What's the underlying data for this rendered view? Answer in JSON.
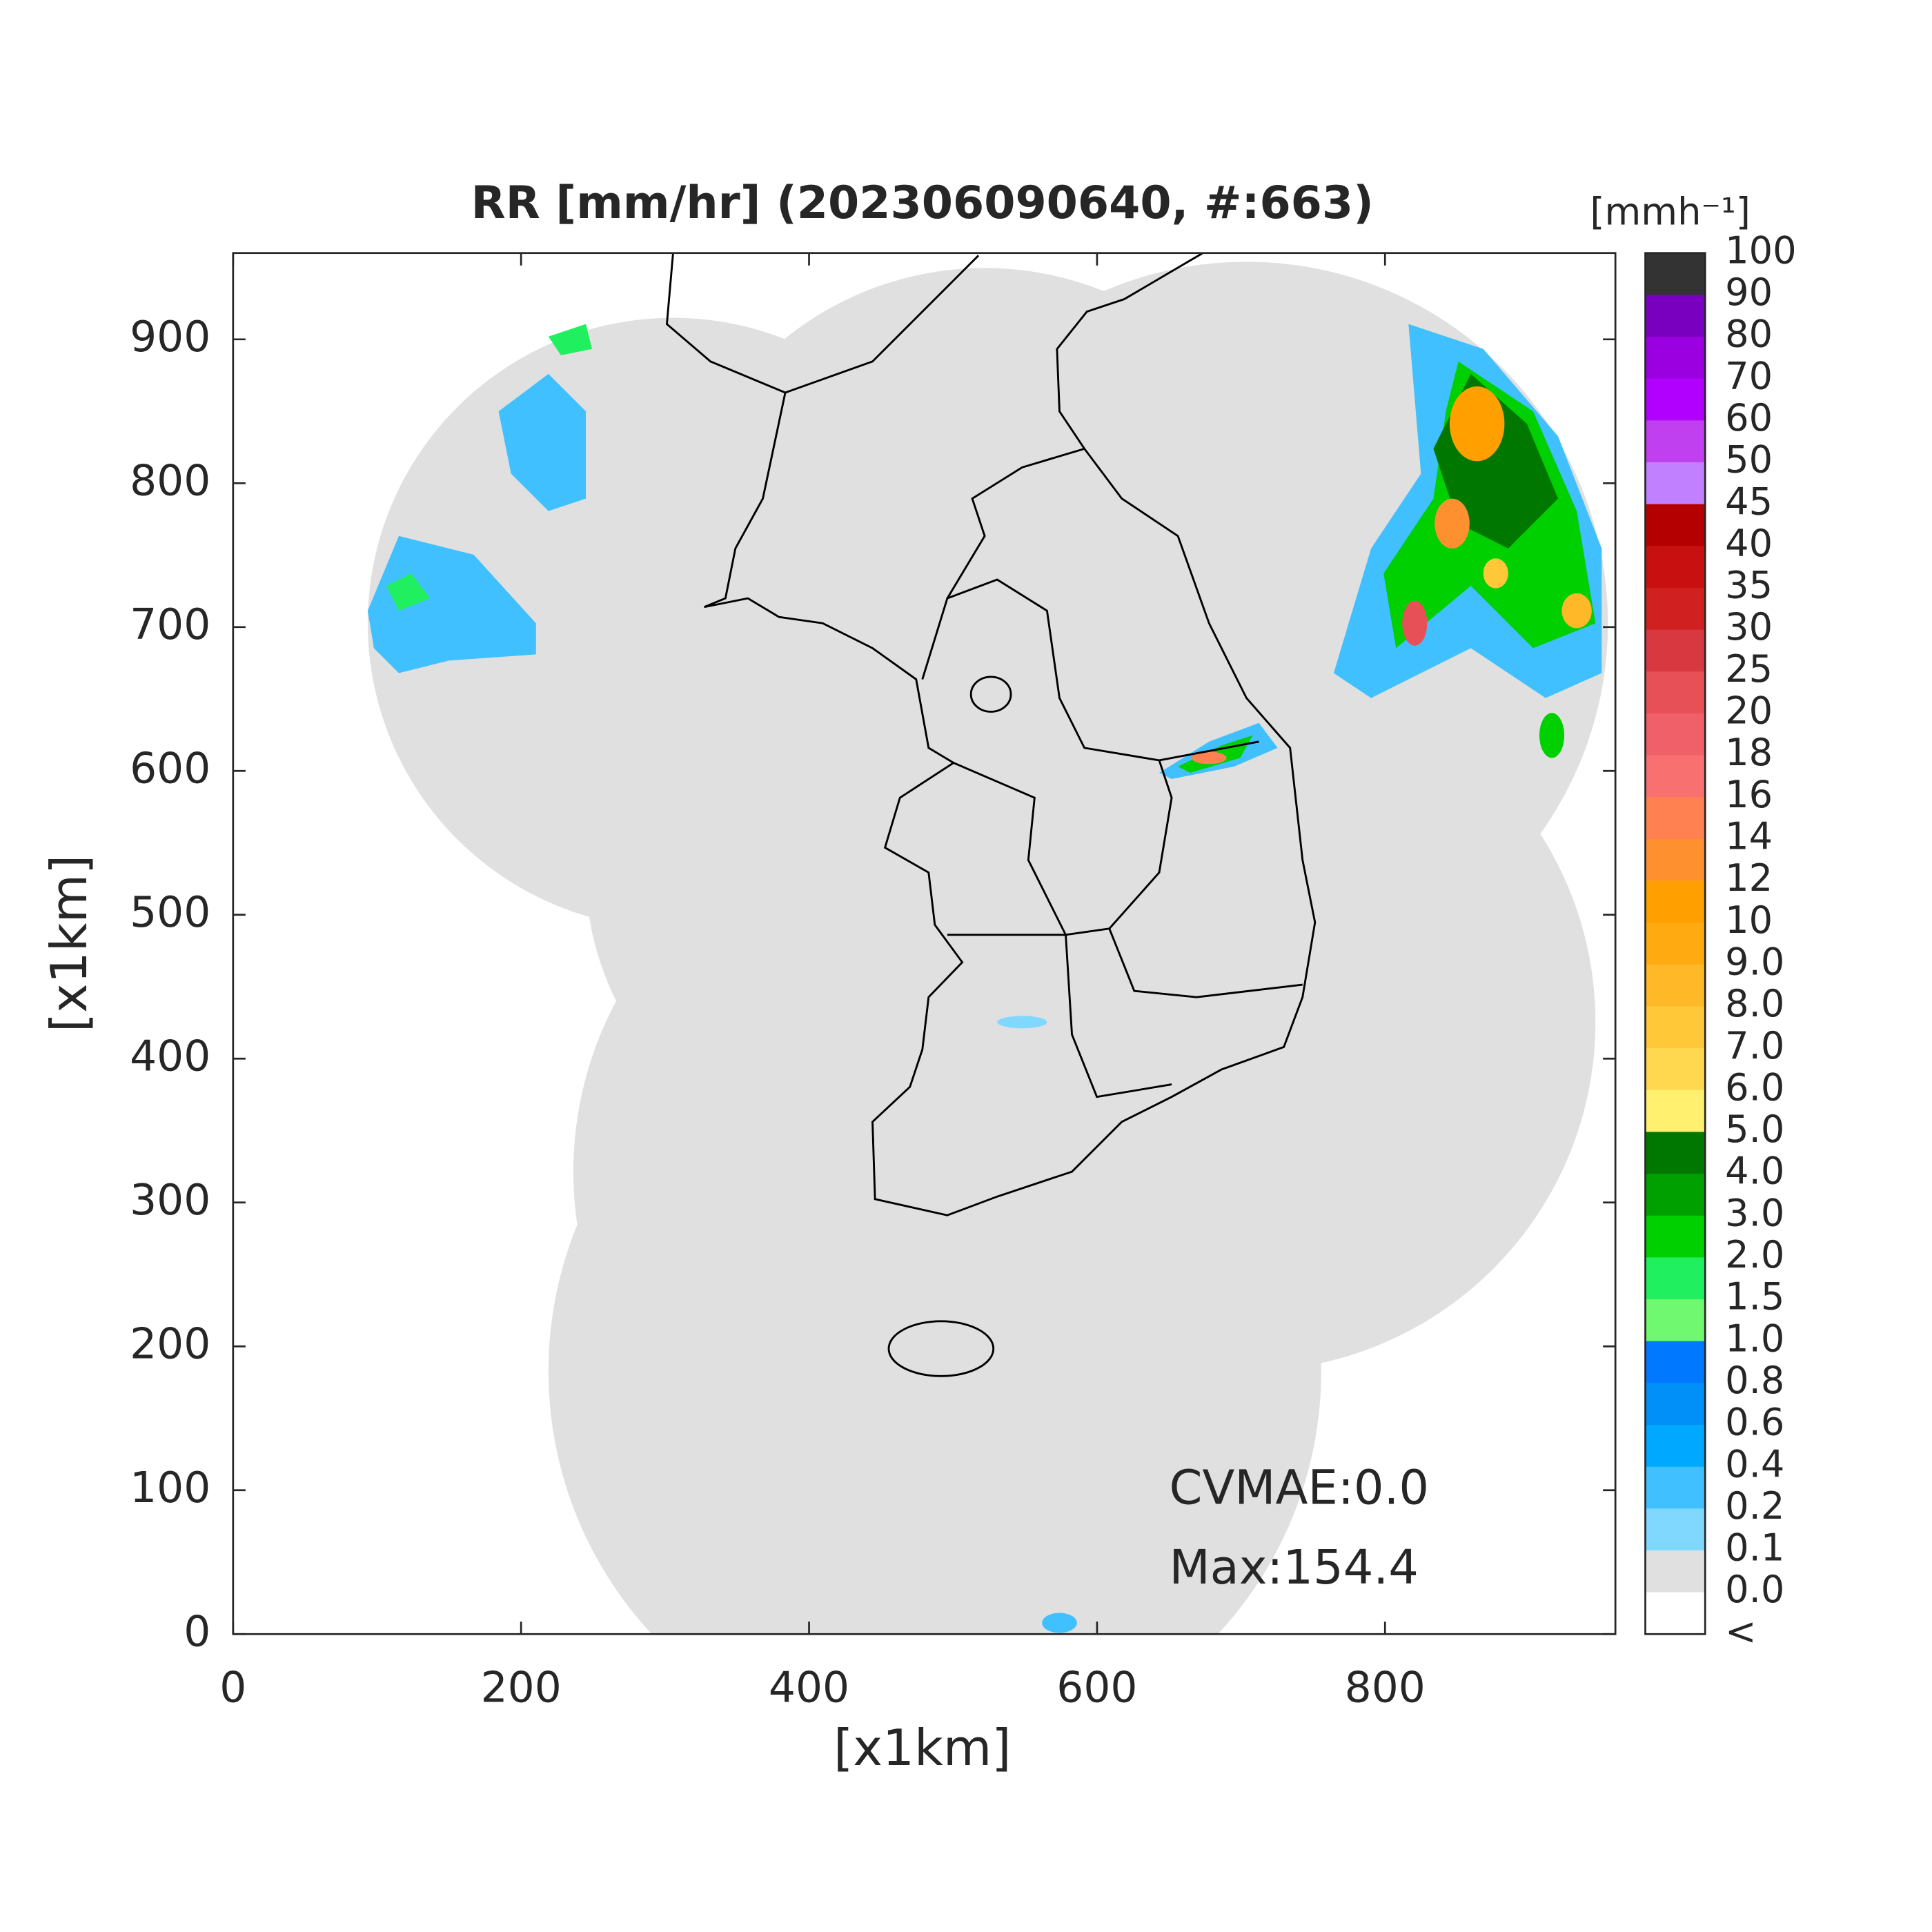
{
  "title": "RR [mm/hr] (202306090640, #:663)",
  "axes": {
    "xlabel": "[x1km]",
    "ylabel": "[x1km]",
    "xlim": [
      0,
      960
    ],
    "ylim": [
      0,
      960
    ],
    "xticks": [
      0,
      200,
      400,
      600,
      800
    ],
    "yticks": [
      0,
      100,
      200,
      300,
      400,
      500,
      600,
      700,
      800,
      900
    ]
  },
  "annotations": [
    "CVMAE:0.0",
    "Max:154.4"
  ],
  "colorbar": {
    "unit": "[mmh⁻¹]",
    "labels": [
      "100",
      "90",
      "80",
      "70",
      "60",
      "50",
      "45",
      "40",
      "35",
      "30",
      "25",
      "20",
      "18",
      "16",
      "14",
      "12",
      "10",
      "9.0",
      "8.0",
      "7.0",
      "6.0",
      "5.0",
      "4.0",
      "3.0",
      "2.0",
      "1.5",
      "1.0",
      "0.8",
      "0.6",
      "0.4",
      "0.2",
      "0.1",
      "0.0",
      "<"
    ],
    "colors": [
      "#333333",
      "#7a00c0",
      "#9a00e0",
      "#b200ff",
      "#c040f0",
      "#c080ff",
      "#b40000",
      "#c81010",
      "#d02020",
      "#d83840",
      "#e85058",
      "#f06068",
      "#f87070",
      "#ff8050",
      "#ff9030",
      "#ffa000",
      "#ffaa10",
      "#ffb828",
      "#ffc838",
      "#ffd850",
      "#fff070",
      "#007800",
      "#00a000",
      "#00d000",
      "#20f060",
      "#70f870",
      "#0078ff",
      "#0090f8",
      "#00a8ff",
      "#40c0ff",
      "#80d8ff",
      "#e0e0e0",
      "#ffffff"
    ]
  }
}
